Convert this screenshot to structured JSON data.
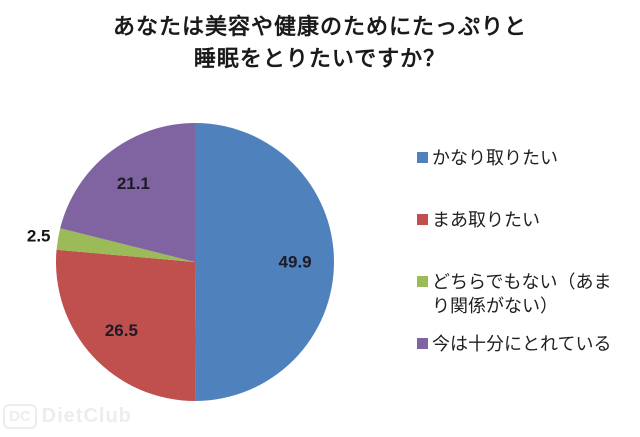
{
  "title": {
    "line1": "あなたは美容や健康のためにたっぷりと",
    "line2": "睡眠をとりたいですか？"
  },
  "chart_data": {
    "type": "pie",
    "title": "あなたは美容や健康のためにたっぷりと睡眠をとりたいですか？",
    "categories": [
      "かなり取りたい",
      "まあ取りたい",
      "どちらでもない（あまり関係がない）",
      "今は十分にとれている"
    ],
    "values": [
      49.9,
      26.5,
      2.5,
      21.1
    ],
    "data_labels": [
      "49.9",
      "26.5",
      "2.5",
      "21.1"
    ],
    "colors": [
      "#4f81bd",
      "#c0504d",
      "#9bbb59",
      "#8064a2"
    ],
    "start_angle_deg": 0,
    "direction": "clockwise",
    "legend_position": "right",
    "inside_label_color": "#1c1b26",
    "outside_label_color": "#141414"
  },
  "legend": {
    "items": [
      {
        "label": "かなり取りたい",
        "color": "#4f81bd"
      },
      {
        "label": "まあ取りたい",
        "color": "#c0504d"
      },
      {
        "label": "どちらでもない（あまり関係がない）",
        "color": "#9bbb59"
      },
      {
        "label": "今は十分にとれている",
        "color": "#8064a2"
      }
    ]
  },
  "watermark": {
    "badge": "DC",
    "name": "DietClub"
  }
}
